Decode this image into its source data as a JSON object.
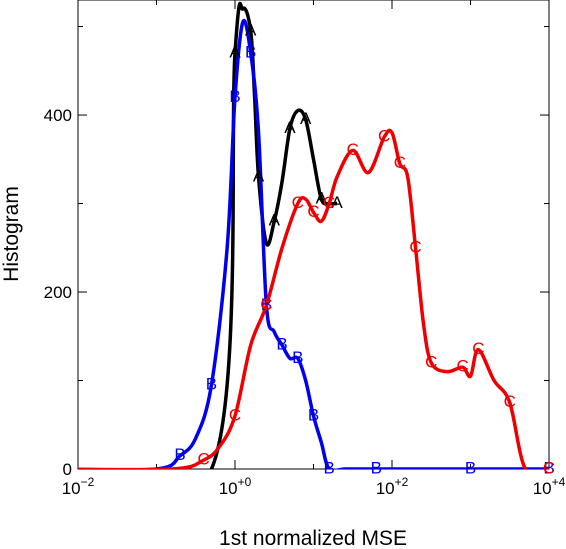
{
  "chart_data": {
    "type": "line",
    "xscale": "log",
    "xlim_log10": [
      -2,
      4
    ],
    "ylim": [
      0,
      530
    ],
    "xlabel": "1st normalized MSE",
    "ylabel": "Histogram",
    "x_ticks": [
      {
        "base": "10",
        "exp": "−2"
      },
      {
        "base": "10",
        "exp": "+0"
      },
      {
        "base": "10",
        "exp": "+2"
      },
      {
        "base": "10",
        "exp": "+4"
      }
    ],
    "y_ticks": [
      "0",
      "200",
      "400"
    ],
    "y_tick_values": [
      0,
      200,
      400
    ],
    "grid": false,
    "series": [
      {
        "marker": "A",
        "color": "#000000",
        "log10_x": [
          -2.3,
          -0.3,
          0.0,
          0.1,
          0.2,
          0.25,
          0.3,
          0.4,
          0.5,
          0.6,
          0.7,
          0.8,
          0.9,
          1.0,
          1.1,
          1.2,
          1.3
        ],
        "y": [
          0,
          0,
          470,
          520,
          495,
          420,
          330,
          255,
          280,
          325,
          385,
          405,
          395,
          350,
          305,
          300,
          300
        ]
      },
      {
        "marker": "B",
        "color": "#0000ee",
        "log10_x": [
          -2.3,
          -1.0,
          -0.7,
          -0.5,
          -0.3,
          -0.1,
          0.0,
          0.1,
          0.2,
          0.3,
          0.4,
          0.5,
          0.6,
          0.7,
          0.8,
          0.9,
          1.0,
          1.1,
          1.2,
          1.4,
          1.8,
          2.5,
          3.0,
          4.0
        ],
        "y": [
          0,
          0,
          15,
          35,
          95,
          250,
          420,
          505,
          470,
          380,
          185,
          155,
          140,
          125,
          125,
          100,
          60,
          30,
          0,
          0,
          0,
          0,
          0,
          0
        ]
      },
      {
        "marker": "C",
        "color": "#ee0000",
        "log10_x": [
          -2.3,
          -0.8,
          -0.4,
          -0.2,
          0.0,
          0.2,
          0.4,
          0.6,
          0.8,
          0.9,
          1.0,
          1.1,
          1.2,
          1.3,
          1.5,
          1.7,
          1.9,
          2.0,
          2.1,
          2.2,
          2.3,
          2.4,
          2.5,
          2.7,
          2.9,
          3.0,
          3.1,
          3.3,
          3.5,
          3.7,
          4.0
        ],
        "y": [
          0,
          0,
          10,
          25,
          60,
          140,
          185,
          250,
          300,
          305,
          290,
          280,
          300,
          330,
          360,
          335,
          375,
          380,
          345,
          330,
          250,
          165,
          120,
          110,
          115,
          105,
          135,
          100,
          75,
          0,
          0
        ]
      }
    ]
  }
}
